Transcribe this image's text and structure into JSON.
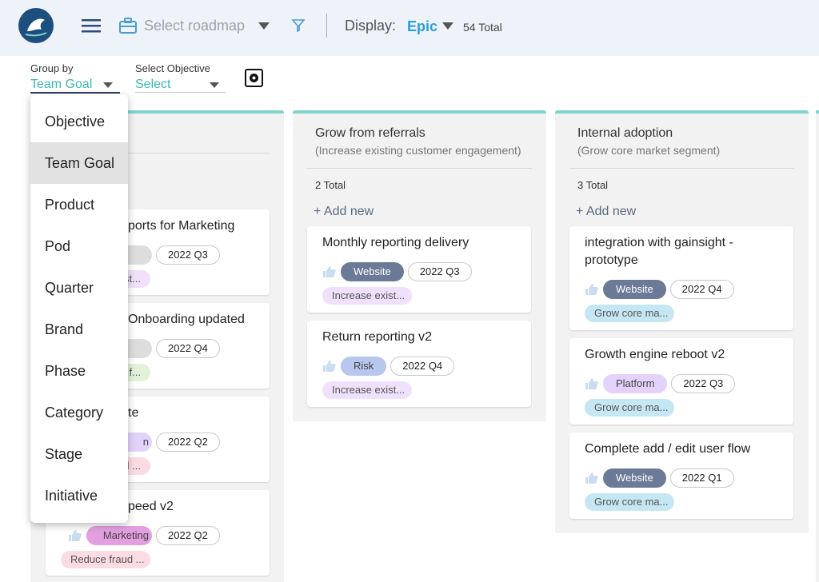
{
  "header": {
    "select_roadmap": "Select roadmap",
    "display_label": "Display:",
    "display_value": "Epic",
    "total": "54 Total"
  },
  "filters": {
    "group_by_label": "Group by",
    "group_by_value": "Team Goal",
    "objective_label": "Select Objective",
    "objective_value": "Select"
  },
  "dropdown": {
    "options": [
      "Objective",
      "Team Goal",
      "Product",
      "Pod",
      "Quarter",
      "Brand",
      "Phase",
      "Category",
      "Stage",
      "Initiative"
    ]
  },
  "columns": [
    {
      "cards": [
        {
          "title": "ports for Marketing",
          "quarter": "2022 Q3",
          "goal": "st...",
          "goal_color": "#efe1fb"
        },
        {
          "title": "Onboarding updated",
          "quarter": "2022 Q4",
          "goal": "f...",
          "goal_color": "#e2f2da"
        },
        {
          "title": "te",
          "tag": "n",
          "tag_color": "#e3d3fb",
          "quarter": "2022 Q2",
          "goal": "l ...",
          "goal_color": "#fbdce3"
        },
        {
          "title": "peed v2",
          "tag": "Marketing",
          "tag_color": "#e39fe0",
          "quarter": "2022 Q2",
          "goal": "Reduce fraud ...",
          "goal_color": "#fbdce3"
        }
      ]
    },
    {
      "title": "Grow from referrals",
      "subtitle": "(Increase existing customer engagement)",
      "total": "2 Total",
      "add_new": "+ Add new",
      "cards": [
        {
          "title": "Monthly reporting delivery",
          "tag": "Website",
          "tag_color": "#6b7a97",
          "quarter": "2022 Q3",
          "goal": "Increase exist...",
          "goal_color": "#efe1fb"
        },
        {
          "title": "Return reporting v2",
          "tag": "Risk",
          "tag_color": "#b8c7ee",
          "quarter": "2022 Q4",
          "goal": "Increase exist...",
          "goal_color": "#efe1fb"
        }
      ]
    },
    {
      "title": "Internal adoption",
      "subtitle": "(Grow core market segment)",
      "total": "3 Total",
      "add_new": "+ Add new",
      "cards": [
        {
          "title": "integration with gainsight - prototype",
          "tag": "Website",
          "tag_color": "#6b7a97",
          "quarter": "2022 Q4",
          "goal": "Grow core ma...",
          "goal_color": "#c5e7f3"
        },
        {
          "title": "Growth engine reboot v2",
          "tag": "Platform",
          "tag_color": "#e3d3fb",
          "quarter": "2022 Q3",
          "goal": "Grow core ma...",
          "goal_color": "#c5e7f3"
        },
        {
          "title": "Complete add / edit user flow",
          "tag": "Website",
          "tag_color": "#6b7a97",
          "quarter": "2022 Q1",
          "goal": "Grow core ma...",
          "goal_color": "#c5e7f3"
        }
      ]
    }
  ]
}
